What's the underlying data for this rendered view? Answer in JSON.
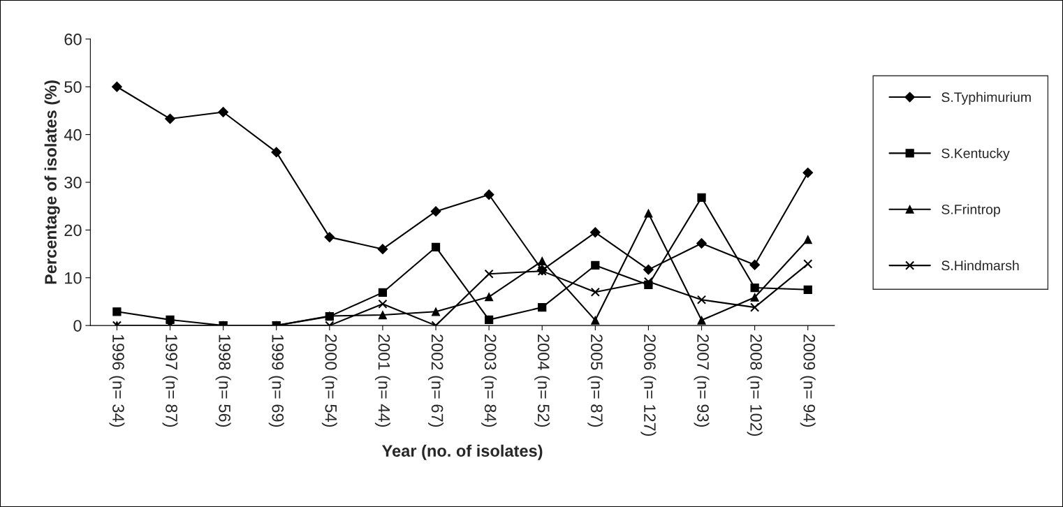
{
  "chart_data": {
    "type": "line",
    "xlabel": "Year (no. of isolates)",
    "ylabel": "Percentage of isolates (%)",
    "categories": [
      "1996 (n= 34)",
      "1997 (n= 87)",
      "1998 (n= 56)",
      "1999 (n= 69)",
      "2000 (n= 54)",
      "2001 (n= 44)",
      "2002 (n= 67)",
      "2003 (n= 84)",
      "2004 (n= 52)",
      "2005 (n= 87)",
      "2006 (n= 127)",
      "2007 (n= 93)",
      "2008 (n= 102)",
      "2009 (n= 94)"
    ],
    "series": [
      {
        "name": "S.Typhimurium",
        "color": "#000000",
        "marker": "diamond",
        "values": [
          50.0,
          43.3,
          44.7,
          36.3,
          18.5,
          16.0,
          23.9,
          27.4,
          11.6,
          19.5,
          11.7,
          17.2,
          12.7,
          32.0
        ]
      },
      {
        "name": "S.Kentucky",
        "color": "#000000",
        "marker": "square",
        "values": [
          2.9,
          1.2,
          0,
          0,
          1.9,
          6.9,
          16.4,
          1.2,
          3.8,
          12.6,
          8.5,
          26.8,
          7.9,
          7.5
        ]
      },
      {
        "name": "S.Frintrop",
        "color": "#000000",
        "marker": "triangle",
        "values": [
          0,
          0,
          0,
          0,
          2.0,
          2.2,
          2.9,
          6.0,
          13.5,
          1.1,
          23.5,
          1.1,
          5.9,
          18.0
        ]
      },
      {
        "name": "S.Hindmarsh",
        "color": "#000000",
        "marker": "cross",
        "values": [
          0,
          0,
          0,
          0,
          0,
          4.5,
          0,
          10.8,
          11.4,
          7.0,
          9.2,
          5.4,
          3.8,
          12.9
        ]
      }
    ],
    "ylim": [
      0,
      60
    ],
    "yticks": [
      0,
      10,
      20,
      30,
      40,
      50,
      60
    ],
    "grid": false,
    "legend": "right",
    "line_style": "solid"
  }
}
